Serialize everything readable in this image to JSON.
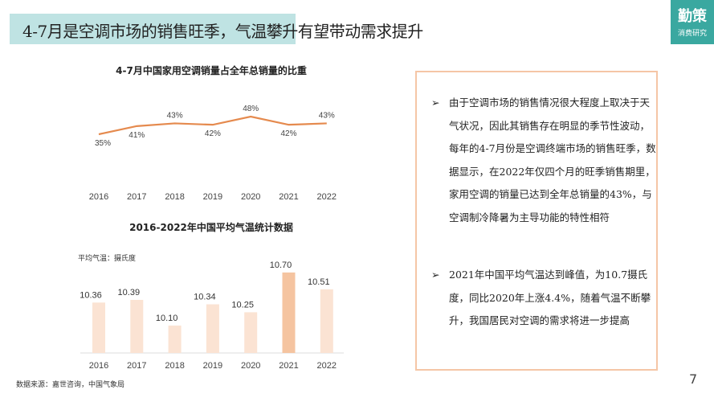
{
  "header": {
    "title": "4-7月是空调市场的销售旺季，气温攀升有望带动需求提升"
  },
  "logo": {
    "line1": "勤策",
    "line2": "消费研究"
  },
  "chart_data": [
    {
      "type": "line",
      "title": "4-7月中国家用空调销量占全年总销量的比重",
      "categories": [
        "2016",
        "2017",
        "2018",
        "2019",
        "2020",
        "2021",
        "2022"
      ],
      "values": [
        35,
        41,
        43,
        42,
        48,
        42,
        43
      ],
      "labels": [
        "35%",
        "41%",
        "43%",
        "42%",
        "48%",
        "42%",
        "43%"
      ],
      "color": "#e58a4e",
      "grid": false
    },
    {
      "type": "bar",
      "title": "2016-2022年中国平均气温统计数据",
      "ylabel": "平均气温：摄氏度",
      "categories": [
        "2016",
        "2017",
        "2018",
        "2019",
        "2020",
        "2021",
        "2022"
      ],
      "values": [
        10.36,
        10.39,
        10.1,
        10.34,
        10.25,
        10.7,
        10.51
      ],
      "labels": [
        "10.36",
        "10.39",
        "10.10",
        "10.34",
        "10.25",
        "10.70",
        "10.51"
      ],
      "color": "#fbe3d3",
      "highlight_color": "#f5c4a0",
      "highlight": "2021",
      "grid": false
    }
  ],
  "panel": {
    "bullets": [
      "由于空调市场的销售情况很大程度上取决于天气状况，因此其销售存在明显的季节性波动，每年的4-7月份是空调终端市场的销售旺季，数据显示，在2022年仅四个月的旺季销售期里，家用空调的销量已达到全年总销量的43%，与空调制冷降暑为主导功能的特性相符",
      "2021年中国平均气温达到峰值，为10.7摄氏度，同比2020年上涨4.4%，随着气温不断攀升，我国居民对空调的需求将进一步提高"
    ],
    "bullet_icon": "arrowhead-bullet-icon"
  },
  "footer": {
    "source": "数据来源：嘉世咨询，中国气象局",
    "page": "7"
  }
}
